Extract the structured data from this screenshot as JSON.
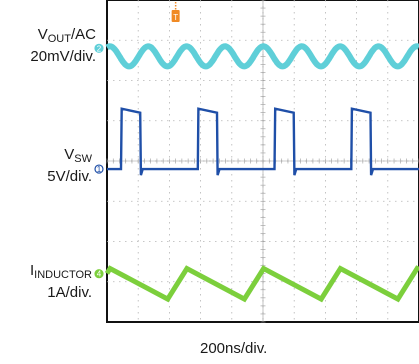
{
  "chart_data": {
    "type": "line",
    "title": "",
    "xlabel": "200ns/div.",
    "grid": true,
    "divisions": {
      "x": 10,
      "y": 8
    },
    "trigger_marker": "T",
    "series": [
      {
        "name_main": "V",
        "name_sub": "OUT",
        "name_suffix": "/AC",
        "scale": "20mV/div.",
        "marker": "2",
        "color": "#5fcfd8",
        "waveform": "sine ripple",
        "baseline_div": 6.6,
        "amplitude_div": 0.25,
        "period_div": 1.23
      },
      {
        "name_main": "V",
        "name_sub": "SW",
        "name_suffix": "",
        "scale": "5V/div.",
        "marker": "1",
        "color": "#1f4fa8",
        "waveform": "square",
        "low_div": 3.8,
        "high_div": 5.3,
        "period_div": 2.46,
        "duty": 0.25,
        "first_edge_div": 0.45
      },
      {
        "name_main": "I",
        "name_sub": "INDUCTOR",
        "name_suffix": "",
        "scale": "1A/div.",
        "marker": "4",
        "color": "#7ccf3c",
        "waveform": "triangle",
        "baseline_div": 0.95,
        "amplitude_div": 0.38,
        "period_div": 2.46,
        "rise_fraction": 0.25,
        "first_peak_div": 0.1
      }
    ]
  }
}
